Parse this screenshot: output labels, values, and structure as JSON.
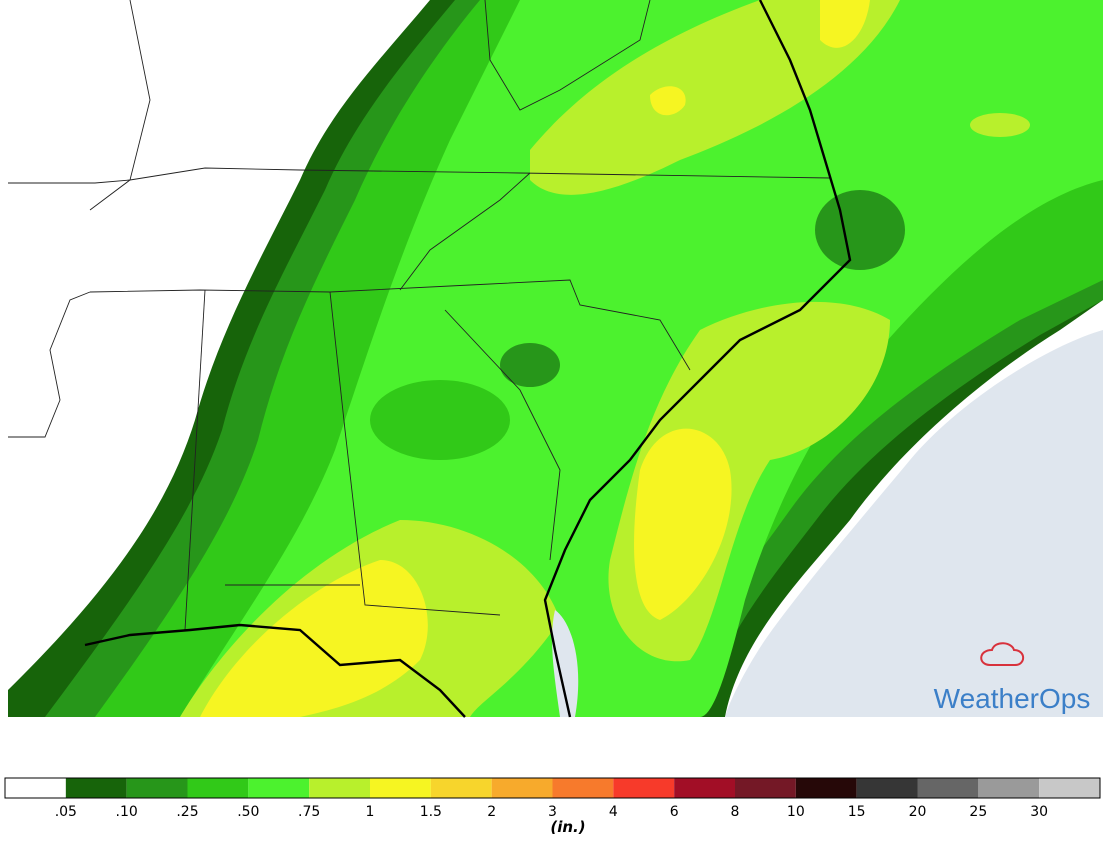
{
  "legend": {
    "labels": [
      ".05",
      ".10",
      ".25",
      ".50",
      ".75",
      "1",
      "1.5",
      "2",
      "3",
      "4",
      "6",
      "8",
      "10",
      "15",
      "20",
      "25",
      "30"
    ],
    "colors": [
      "#ffffff",
      "#17640a",
      "#27961a",
      "#31c918",
      "#4cf22e",
      "#b8f02c",
      "#f6f522",
      "#f7d52c",
      "#f7aa2c",
      "#f77a2c",
      "#f73a2a",
      "#a20e26",
      "#741826",
      "#260808",
      "#363636",
      "#666666",
      "#9a9a9a",
      "#c8c8c8"
    ],
    "units": "(in.)"
  },
  "logo": {
    "brand": "WeatherOps"
  }
}
